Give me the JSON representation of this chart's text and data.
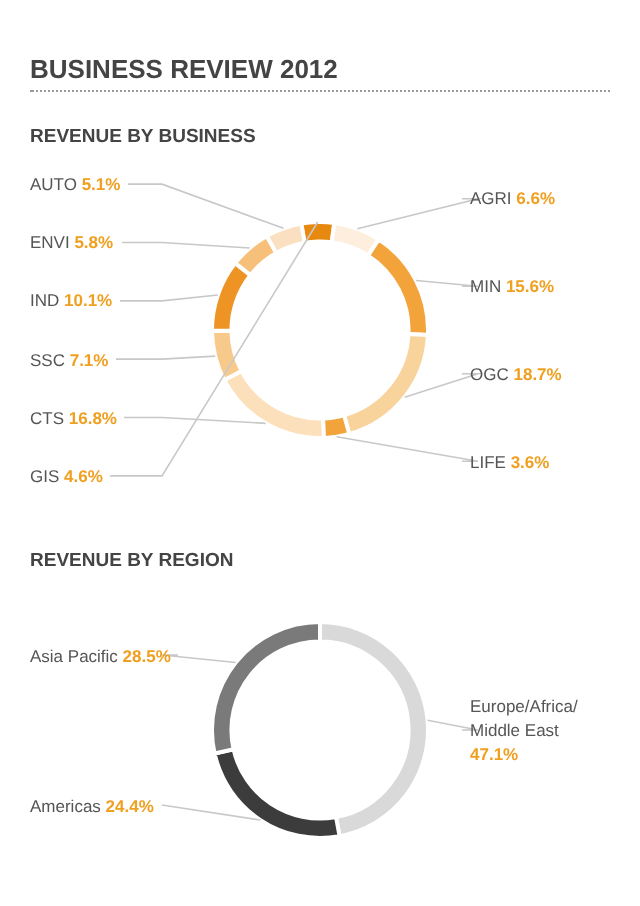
{
  "chart_data": [
    {
      "type": "donut",
      "title": "BUSINESS REVIEW 2012",
      "subtitle": "REVENUE BY BUSINESS",
      "categories": [
        "GIS",
        "AGRI",
        "MIN",
        "OGC",
        "LIFE",
        "CTS",
        "SSC",
        "IND",
        "ENVI",
        "AUTO"
      ],
      "values": [
        4.6,
        6.6,
        15.6,
        18.7,
        3.6,
        16.8,
        7.1,
        10.1,
        5.8,
        5.1
      ],
      "value_labels": [
        "4.6%",
        "6.6%",
        "15.6%",
        "18.7%",
        "3.6%",
        "16.8%",
        "7.1%",
        "10.1%",
        "5.8%",
        "5.1%"
      ],
      "colors": [
        "#e8890f",
        "#fdeedd",
        "#f2a33a",
        "#f9d39c",
        "#f2a33a",
        "#fbe0bb",
        "#f7c98a",
        "#ee9424",
        "#f7c07a",
        "#fae0c0"
      ]
    },
    {
      "type": "donut",
      "title": "REVENUE BY REGION",
      "categories": [
        "Europe/Africa/ Middle East",
        "Americas",
        "Asia Pacific"
      ],
      "values": [
        47.1,
        24.4,
        28.5
      ],
      "value_labels": [
        "47.1%",
        "24.4%",
        "28.5%"
      ],
      "colors": [
        "#d9d9d9",
        "#3c3c3c",
        "#7a7a7a"
      ]
    }
  ]
}
